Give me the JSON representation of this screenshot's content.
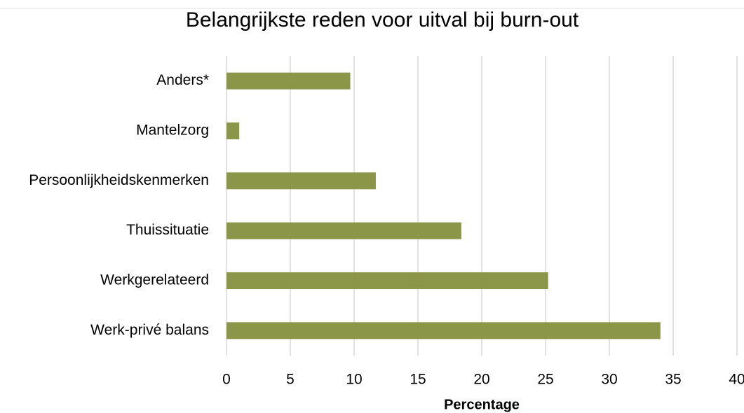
{
  "chart_data": {
    "type": "barh",
    "title": "Belangrijkste reden voor uitval bij burn-out",
    "categories": [
      "Anders*",
      "Mantelzorg",
      "Persoonlijkheidskenmerken",
      "Thuissituatie",
      "Werkgerelateerd",
      "Werk-privé balans"
    ],
    "values": [
      9.7,
      1.0,
      11.7,
      18.4,
      25.2,
      34.0
    ],
    "color": "#8c9649",
    "xlabel": "Percentage",
    "xlim": [
      0,
      40
    ],
    "xticks": [
      0,
      5,
      10,
      15,
      20,
      25,
      30,
      35,
      40
    ],
    "grid": true
  }
}
